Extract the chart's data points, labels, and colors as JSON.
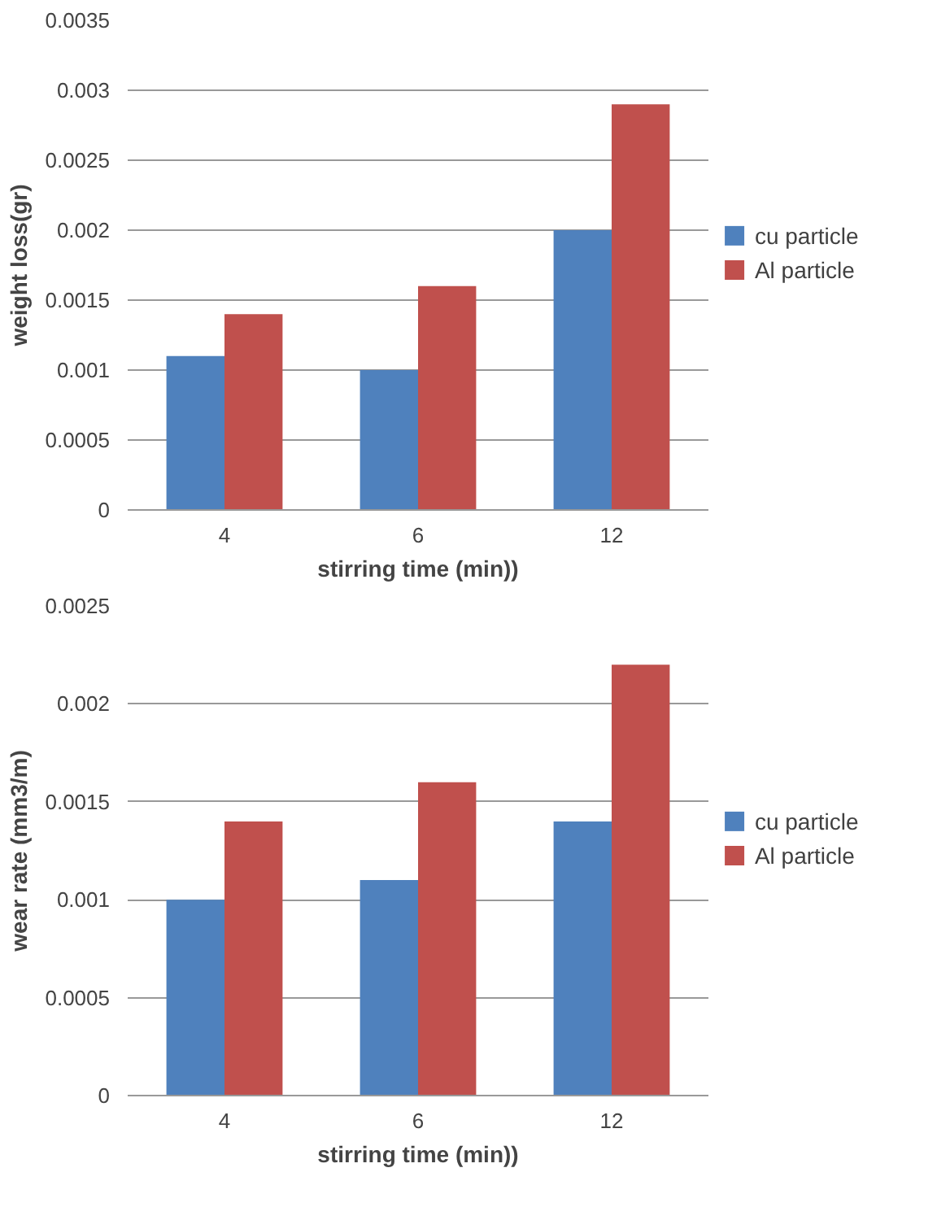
{
  "chart_data": [
    {
      "type": "bar",
      "xlabel": "stirring time (min))",
      "ylabel": "weight loss(gr)",
      "categories": [
        "4",
        "6",
        "12"
      ],
      "series": [
        {
          "name": "cu particle",
          "color": "#4f81bd",
          "values": [
            0.0011,
            0.001,
            0.002
          ]
        },
        {
          "name": "Al particle",
          "color": "#c0504d",
          "values": [
            0.0014,
            0.0016,
            0.0029
          ]
        }
      ],
      "ylim": [
        0,
        0.0035
      ],
      "yticks": [
        0,
        0.0005,
        0.001,
        0.0015,
        0.002,
        0.0025,
        0.003,
        0.0035
      ],
      "grid": "y",
      "legend": "right"
    },
    {
      "type": "bar",
      "xlabel": "stirring time (min))",
      "ylabel": "wear rate (mm3/m)",
      "categories": [
        "4",
        "6",
        "12"
      ],
      "series": [
        {
          "name": "cu particle",
          "color": "#4f81bd",
          "values": [
            0.001,
            0.0011,
            0.0014
          ]
        },
        {
          "name": "Al particle",
          "color": "#c0504d",
          "values": [
            0.0014,
            0.0016,
            0.0022
          ]
        }
      ],
      "ylim": [
        0,
        0.0025
      ],
      "yticks": [
        0,
        0.0005,
        0.001,
        0.0015,
        0.002,
        0.0025
      ],
      "grid": "y",
      "legend": "right"
    }
  ]
}
